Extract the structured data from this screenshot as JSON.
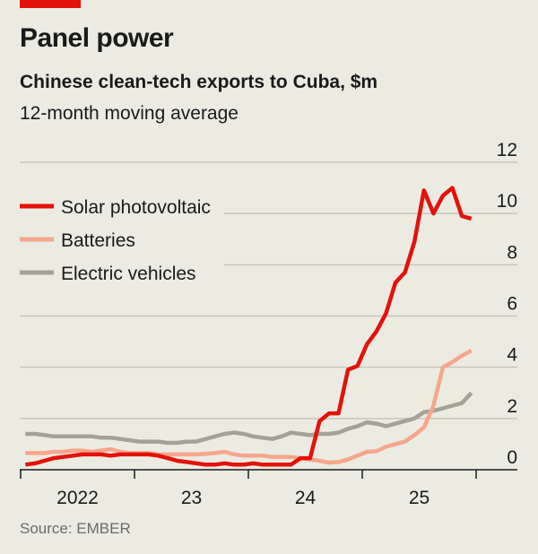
{
  "header": {
    "title": "Panel power",
    "subtitle": "Chinese clean-tech exports to Cuba, $m",
    "note": "12-month moving average",
    "source": "Source: EMBER"
  },
  "colors": {
    "accent": "#e3120b",
    "solar": "#e3120b",
    "batteries": "#f5a68c",
    "ev": "#a3a395",
    "grid": "#c8c7bb",
    "background": "#ecebe1"
  },
  "chart_data": {
    "type": "line",
    "title": "Panel power",
    "subtitle": "Chinese clean-tech exports to Cuba, $m",
    "frequency": "monthly, Jan 2022 - Dec 2025",
    "x_start": "2022-01",
    "x_ticks": [
      "2022",
      "23",
      "24",
      "25"
    ],
    "ylim": [
      0,
      12
    ],
    "y_ticks": [
      0,
      2,
      4,
      6,
      8,
      10,
      12
    ],
    "y_axis_side": "right",
    "grid": true,
    "legend_placement": "top-left",
    "series": [
      {
        "name": "Solar photovoltaic",
        "color": "#e3120b",
        "values": [
          0.2,
          0.25,
          0.35,
          0.45,
          0.5,
          0.55,
          0.6,
          0.6,
          0.6,
          0.55,
          0.6,
          0.6,
          0.6,
          0.6,
          0.55,
          0.45,
          0.35,
          0.3,
          0.25,
          0.2,
          0.2,
          0.25,
          0.2,
          0.2,
          0.25,
          0.2,
          0.2,
          0.2,
          0.2,
          0.45,
          0.45,
          1.9,
          2.2,
          2.2,
          3.9,
          4.05,
          4.9,
          5.4,
          6.1,
          7.3,
          7.7,
          8.9,
          10.9,
          10.0,
          10.7,
          11.0,
          9.9,
          9.8
        ]
      },
      {
        "name": "Batteries",
        "color": "#f5a68c",
        "values": [
          0.65,
          0.65,
          0.65,
          0.7,
          0.7,
          0.75,
          0.75,
          0.7,
          0.75,
          0.8,
          0.7,
          0.65,
          0.65,
          0.65,
          0.6,
          0.6,
          0.6,
          0.6,
          0.6,
          0.62,
          0.65,
          0.7,
          0.6,
          0.55,
          0.55,
          0.55,
          0.5,
          0.5,
          0.5,
          0.45,
          0.4,
          0.35,
          0.28,
          0.3,
          0.4,
          0.55,
          0.7,
          0.72,
          0.9,
          1.0,
          1.1,
          1.35,
          1.65,
          2.5,
          4.0,
          4.2,
          4.45,
          4.65
        ]
      },
      {
        "name": "Electric vehicles",
        "color": "#a3a395",
        "values": [
          1.4,
          1.4,
          1.35,
          1.3,
          1.3,
          1.3,
          1.3,
          1.3,
          1.25,
          1.25,
          1.2,
          1.15,
          1.1,
          1.1,
          1.1,
          1.05,
          1.05,
          1.1,
          1.1,
          1.2,
          1.3,
          1.4,
          1.45,
          1.4,
          1.3,
          1.25,
          1.2,
          1.3,
          1.45,
          1.4,
          1.35,
          1.4,
          1.4,
          1.45,
          1.6,
          1.7,
          1.85,
          1.8,
          1.7,
          1.8,
          1.9,
          2.0,
          2.25,
          2.3,
          2.4,
          2.5,
          2.6,
          3.0
        ]
      }
    ]
  }
}
